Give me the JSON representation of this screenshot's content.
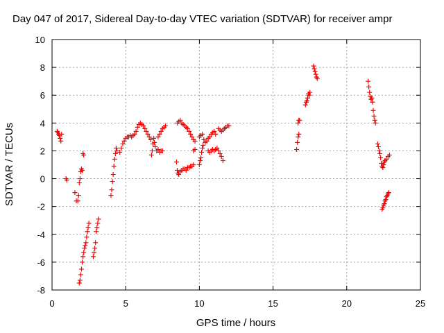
{
  "chart_data": {
    "type": "scatter",
    "title": "Day 047 of 2017, Sidereal Day-to-day VTEC variation (SDTVAR) for receiver ampr",
    "xlabel": "GPS time / hours",
    "ylabel": "SDTVAR / TECUs",
    "xlim": [
      0,
      25
    ],
    "ylim": [
      -8,
      10
    ],
    "xticks": [
      "0",
      "5",
      "10",
      "15",
      "20",
      "25"
    ],
    "yticks": [
      "-8",
      "-6",
      "-4",
      "-2",
      "0",
      "2",
      "4",
      "6",
      "8",
      "10"
    ],
    "grid": true,
    "marker": "+",
    "color": "#ff0000",
    "series": [
      {
        "points": [
          [
            0.35,
            3.4
          ],
          [
            0.4,
            3.3
          ],
          [
            0.45,
            3.2
          ],
          [
            0.5,
            3.1
          ],
          [
            0.55,
            2.9
          ],
          [
            0.6,
            2.7
          ],
          [
            0.65,
            3.2
          ],
          [
            0.95,
            0.0
          ],
          [
            1.0,
            -0.1
          ],
          [
            1.55,
            -1.0
          ],
          [
            1.65,
            -1.6
          ],
          [
            1.75,
            -1.6
          ],
          [
            1.8,
            -1.2
          ],
          [
            1.85,
            -0.3
          ],
          [
            1.9,
            0.0
          ],
          [
            1.95,
            0.5
          ],
          [
            2.0,
            0.7
          ],
          [
            2.05,
            0.6
          ],
          [
            2.1,
            1.8
          ],
          [
            2.15,
            1.7
          ],
          [
            1.85,
            -7.5
          ],
          [
            1.9,
            -7.3
          ],
          [
            1.95,
            -6.9
          ],
          [
            2.0,
            -6.5
          ],
          [
            2.05,
            -6.0
          ],
          [
            2.1,
            -5.6
          ],
          [
            2.15,
            -5.3
          ],
          [
            2.2,
            -5.0
          ],
          [
            2.25,
            -4.8
          ],
          [
            2.3,
            -4.6
          ],
          [
            2.35,
            -4.2
          ],
          [
            2.4,
            -3.8
          ],
          [
            2.45,
            -3.5
          ],
          [
            2.5,
            -3.2
          ],
          [
            2.8,
            -5.6
          ],
          [
            2.85,
            -5.3
          ],
          [
            2.9,
            -5.0
          ],
          [
            2.95,
            -4.6
          ],
          [
            3.0,
            -3.8
          ],
          [
            3.05,
            -3.5
          ],
          [
            3.1,
            -3.2
          ],
          [
            3.15,
            -2.9
          ],
          [
            4.0,
            -1.2
          ],
          [
            4.05,
            -0.8
          ],
          [
            4.1,
            -0.2
          ],
          [
            4.15,
            0.3
          ],
          [
            4.2,
            0.9
          ],
          [
            4.25,
            1.4
          ],
          [
            4.3,
            1.8
          ],
          [
            4.35,
            2.2
          ],
          [
            4.4,
            2.0
          ],
          [
            4.6,
            1.9
          ],
          [
            4.7,
            2.2
          ],
          [
            4.8,
            2.5
          ],
          [
            4.9,
            2.7
          ],
          [
            5.0,
            2.9
          ],
          [
            5.1,
            3.0
          ],
          [
            5.2,
            3.0
          ],
          [
            5.3,
            3.1
          ],
          [
            5.4,
            3.0
          ],
          [
            5.5,
            3.1
          ],
          [
            5.6,
            3.2
          ],
          [
            5.7,
            3.4
          ],
          [
            5.8,
            3.7
          ],
          [
            5.9,
            3.9
          ],
          [
            6.0,
            4.0
          ],
          [
            6.1,
            3.9
          ],
          [
            6.2,
            3.8
          ],
          [
            6.3,
            3.6
          ],
          [
            6.4,
            3.4
          ],
          [
            6.5,
            3.2
          ],
          [
            6.6,
            3.0
          ],
          [
            6.7,
            2.8
          ],
          [
            6.75,
            1.7
          ],
          [
            6.8,
            2.0
          ],
          [
            6.85,
            2.5
          ],
          [
            6.9,
            2.9
          ],
          [
            6.95,
            2.6
          ],
          [
            7.0,
            2.3
          ],
          [
            7.1,
            2.0
          ],
          [
            7.2,
            2.1
          ],
          [
            7.3,
            1.9
          ],
          [
            7.4,
            2.0
          ],
          [
            7.5,
            2.0
          ],
          [
            7.2,
            3.0
          ],
          [
            7.3,
            3.2
          ],
          [
            7.4,
            3.4
          ],
          [
            7.5,
            3.6
          ],
          [
            7.6,
            3.7
          ],
          [
            7.7,
            3.8
          ],
          [
            8.45,
            1.2
          ],
          [
            8.5,
            0.6
          ],
          [
            8.55,
            0.4
          ],
          [
            8.6,
            0.3
          ],
          [
            8.7,
            0.5
          ],
          [
            8.8,
            0.6
          ],
          [
            8.9,
            0.7
          ],
          [
            9.0,
            0.7
          ],
          [
            9.1,
            0.6
          ],
          [
            9.2,
            0.8
          ],
          [
            9.3,
            0.8
          ],
          [
            9.4,
            0.9
          ],
          [
            9.5,
            0.9
          ],
          [
            9.6,
            1.0
          ],
          [
            8.5,
            4.0
          ],
          [
            8.6,
            4.1
          ],
          [
            8.7,
            4.2
          ],
          [
            8.8,
            4.0
          ],
          [
            8.9,
            3.9
          ],
          [
            9.0,
            3.8
          ],
          [
            9.1,
            3.7
          ],
          [
            9.2,
            3.6
          ],
          [
            9.3,
            3.4
          ],
          [
            9.4,
            3.2
          ],
          [
            9.5,
            3.0
          ],
          [
            9.6,
            2.8
          ],
          [
            9.7,
            2.7
          ],
          [
            9.6,
            2.0
          ],
          [
            9.7,
            2.1
          ],
          [
            10.0,
            1.0
          ],
          [
            10.05,
            1.3
          ],
          [
            10.1,
            1.5
          ],
          [
            10.15,
            1.9
          ],
          [
            10.2,
            2.2
          ],
          [
            10.25,
            2.4
          ],
          [
            10.0,
            3.0
          ],
          [
            10.1,
            3.1
          ],
          [
            10.2,
            3.2
          ],
          [
            10.3,
            2.8
          ],
          [
            10.4,
            2.6
          ],
          [
            10.5,
            2.7
          ],
          [
            10.6,
            2.9
          ],
          [
            10.7,
            3.0
          ],
          [
            10.8,
            3.2
          ],
          [
            10.9,
            3.3
          ],
          [
            11.0,
            3.4
          ],
          [
            11.1,
            3.2
          ],
          [
            10.6,
            2.0
          ],
          [
            10.7,
            1.9
          ],
          [
            10.8,
            2.0
          ],
          [
            10.9,
            2.1
          ],
          [
            11.0,
            2.0
          ],
          [
            11.1,
            2.1
          ],
          [
            11.2,
            2.2
          ],
          [
            11.3,
            2.0
          ],
          [
            11.4,
            1.8
          ],
          [
            11.5,
            1.6
          ],
          [
            11.6,
            1.3
          ],
          [
            11.3,
            3.6
          ],
          [
            11.4,
            3.5
          ],
          [
            11.5,
            3.4
          ],
          [
            11.6,
            3.5
          ],
          [
            11.7,
            3.6
          ],
          [
            11.8,
            3.7
          ],
          [
            11.9,
            3.8
          ],
          [
            12.0,
            3.8
          ],
          [
            16.6,
            2.1
          ],
          [
            16.65,
            2.6
          ],
          [
            16.7,
            3.0
          ],
          [
            16.75,
            3.2
          ],
          [
            16.7,
            4.0
          ],
          [
            16.75,
            4.2
          ],
          [
            16.8,
            4.2
          ],
          [
            17.2,
            5.3
          ],
          [
            17.25,
            5.5
          ],
          [
            17.3,
            5.6
          ],
          [
            17.35,
            5.8
          ],
          [
            17.4,
            6.1
          ],
          [
            17.45,
            6.0
          ],
          [
            17.5,
            6.2
          ],
          [
            17.75,
            8.1
          ],
          [
            17.8,
            7.9
          ],
          [
            17.85,
            7.7
          ],
          [
            17.9,
            7.5
          ],
          [
            17.95,
            7.3
          ],
          [
            18.0,
            7.2
          ],
          [
            21.45,
            7.0
          ],
          [
            21.5,
            6.6
          ],
          [
            21.55,
            6.2
          ],
          [
            21.6,
            5.9
          ],
          [
            21.65,
            5.7
          ],
          [
            21.7,
            5.8
          ],
          [
            21.75,
            5.5
          ],
          [
            21.8,
            4.9
          ],
          [
            21.85,
            4.5
          ],
          [
            21.9,
            4.2
          ],
          [
            21.95,
            4.0
          ],
          [
            22.1,
            2.5
          ],
          [
            22.15,
            2.3
          ],
          [
            22.2,
            2.0
          ],
          [
            22.25,
            1.8
          ],
          [
            22.3,
            1.5
          ],
          [
            22.35,
            1.1
          ],
          [
            22.4,
            0.9
          ],
          [
            22.45,
            0.8
          ],
          [
            22.5,
            1.0
          ],
          [
            22.55,
            1.2
          ],
          [
            22.6,
            1.3
          ],
          [
            22.7,
            1.4
          ],
          [
            22.8,
            1.6
          ],
          [
            22.9,
            1.7
          ],
          [
            22.4,
            -2.2
          ],
          [
            22.45,
            -2.1
          ],
          [
            22.5,
            -1.9
          ],
          [
            22.55,
            -1.8
          ],
          [
            22.6,
            -1.6
          ],
          [
            22.65,
            -1.5
          ],
          [
            22.7,
            -1.3
          ],
          [
            22.75,
            -1.2
          ],
          [
            22.8,
            -1.1
          ],
          [
            22.85,
            -1.0
          ]
        ]
      }
    ]
  }
}
